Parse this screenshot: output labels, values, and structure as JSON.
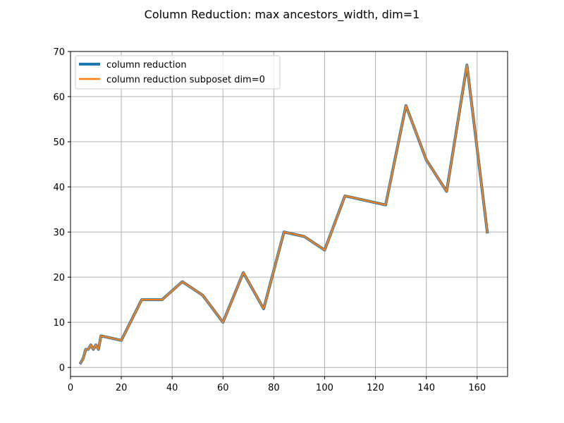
{
  "chart_data": {
    "type": "line",
    "title": "Column Reduction: max ancestors_width, dim=1",
    "xlabel": "",
    "ylabel": "",
    "xlim": [
      0,
      172
    ],
    "ylim": [
      -2,
      70
    ],
    "xticks": [
      0,
      20,
      40,
      60,
      80,
      100,
      120,
      140,
      160
    ],
    "yticks": [
      0,
      10,
      20,
      30,
      40,
      50,
      60,
      70
    ],
    "grid": true,
    "legend_position": "upper-left",
    "x": [
      4,
      5,
      6,
      7,
      8,
      9,
      10,
      11,
      12,
      20,
      28,
      36,
      44,
      52,
      60,
      68,
      76,
      84,
      92,
      100,
      108,
      116,
      124,
      132,
      140,
      148,
      156,
      164
    ],
    "series": [
      {
        "name": "column reduction",
        "color": "#1f77b4",
        "values": [
          1,
          2,
          4,
          4,
          5,
          4,
          5,
          4,
          7,
          6,
          15,
          15,
          19,
          16,
          10,
          21,
          13,
          30,
          29,
          26,
          38,
          37,
          36,
          58,
          46,
          39,
          67,
          30
        ]
      },
      {
        "name": "column reduction subposet dim=0",
        "color": "#ff7f0e",
        "values": [
          1,
          2,
          4,
          4,
          5,
          4,
          5,
          4,
          7,
          6,
          15,
          15,
          19,
          16,
          10,
          21,
          13,
          30,
          29,
          26,
          38,
          37,
          36,
          58,
          46,
          39,
          67,
          30
        ]
      }
    ]
  }
}
